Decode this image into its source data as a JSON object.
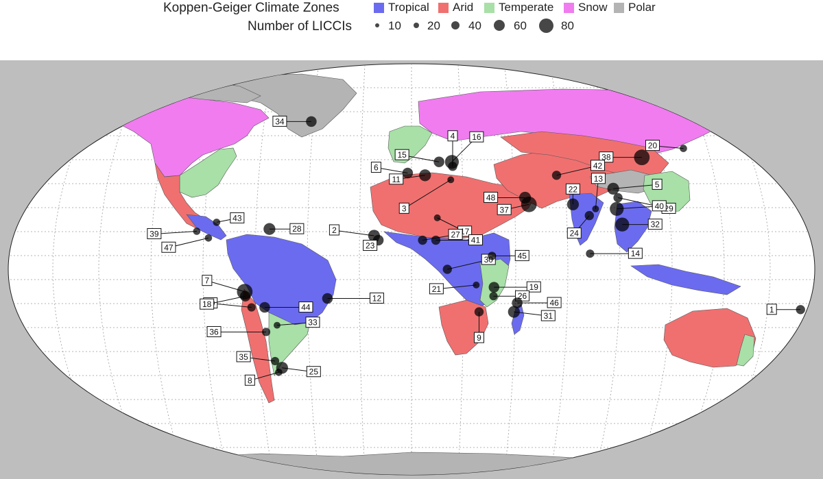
{
  "legend": {
    "climate_title": "Koppen-Geiger Climate Zones",
    "zones": [
      {
        "label": "Tropical",
        "color": "#6b6bf0"
      },
      {
        "label": "Arid",
        "color": "#f07070"
      },
      {
        "label": "Temperate",
        "color": "#a8e0a8"
      },
      {
        "label": "Snow",
        "color": "#f07cf0"
      },
      {
        "label": "Polar",
        "color": "#b4b4b4"
      }
    ],
    "size_title": "Number of LICCIs",
    "sizes": [
      {
        "label": "10",
        "value": 10
      },
      {
        "label": "20",
        "value": 20
      },
      {
        "label": "40",
        "value": 40
      },
      {
        "label": "60",
        "value": 60
      },
      {
        "label": "80",
        "value": 80
      }
    ]
  },
  "map": {
    "projection": "Robinson-like world map",
    "ocean_color": "#ffffff",
    "frame_color": "#bebebe",
    "graticule": "dotted",
    "sites": [
      {
        "id": "1",
        "lon": 178,
        "lat": -18,
        "licci": 20
      },
      {
        "id": "2",
        "lon": -17,
        "lat": 15,
        "licci": 40
      },
      {
        "id": "3",
        "lon": 20,
        "lat": 40,
        "licci": 8
      },
      {
        "id": "4",
        "lon": 22,
        "lat": 46,
        "licci": 20
      },
      {
        "id": "5",
        "lon": 100,
        "lat": 36,
        "licci": 40
      },
      {
        "id": "6",
        "lon": -2,
        "lat": 43,
        "licci": 30
      },
      {
        "id": "7",
        "lon": -75,
        "lat": -10,
        "licci": 80
      },
      {
        "id": "8",
        "lon": -71,
        "lat": -46,
        "licci": 10
      },
      {
        "id": "9",
        "lon": 31,
        "lat": -19,
        "licci": 20
      },
      {
        "id": "10",
        "lon": -73,
        "lat": -17,
        "licci": 15
      },
      {
        "id": "11",
        "lon": 7,
        "lat": 42,
        "licci": 40
      },
      {
        "id": "12",
        "lon": -38,
        "lat": -13,
        "licci": 30
      },
      {
        "id": "13",
        "lon": 87,
        "lat": 27,
        "licci": 8
      },
      {
        "id": "14",
        "lon": 80,
        "lat": 7,
        "licci": 15
      },
      {
        "id": "15",
        "lon": 15,
        "lat": 48,
        "licci": 30
      },
      {
        "id": "16",
        "lon": 22,
        "lat": 48,
        "licci": 60
      },
      {
        "id": "17",
        "lon": 12,
        "lat": 23,
        "licci": 8
      },
      {
        "id": "18",
        "lon": -75,
        "lat": -12,
        "licci": 30
      },
      {
        "id": "19",
        "lon": 37,
        "lat": -8,
        "licci": 30
      },
      {
        "id": "20",
        "lon": 158,
        "lat": 54,
        "licci": 10
      },
      {
        "id": "21",
        "lon": 29,
        "lat": -7,
        "licci": 8
      },
      {
        "id": "22",
        "lon": 77,
        "lat": 29,
        "licci": 40
      },
      {
        "id": "23",
        "lon": -15,
        "lat": 13,
        "licci": 30
      },
      {
        "id": "24",
        "lon": 83,
        "lat": 24,
        "licci": 20
      },
      {
        "id": "25",
        "lon": -68,
        "lat": -44,
        "licci": 40
      },
      {
        "id": "26",
        "lon": 37,
        "lat": -12,
        "licci": 15
      },
      {
        "id": "27",
        "lon": 5,
        "lat": 13,
        "licci": 20
      },
      {
        "id": "28",
        "lon": -65,
        "lat": 18,
        "licci": 40
      },
      {
        "id": "29",
        "lon": 100,
        "lat": 32,
        "licci": 20
      },
      {
        "id": "30",
        "lon": 16,
        "lat": 0,
        "licci": 20
      },
      {
        "id": "31",
        "lon": 47,
        "lat": -19,
        "licci": 40
      },
      {
        "id": "32",
        "lon": 97,
        "lat": 20,
        "licci": 60
      },
      {
        "id": "33",
        "lon": -63,
        "lat": -25,
        "licci": 8
      },
      {
        "id": "34",
        "lon": -70,
        "lat": 66,
        "licci": 30
      },
      {
        "id": "35",
        "lon": -70,
        "lat": -41,
        "licci": 15
      },
      {
        "id": "36",
        "lon": -69,
        "lat": -28,
        "licci": 15
      },
      {
        "id": "37",
        "lon": 56,
        "lat": 29,
        "licci": 80
      },
      {
        "id": "38",
        "lon": 128,
        "lat": 50,
        "licci": 80
      },
      {
        "id": "39",
        "lon": -98,
        "lat": 17,
        "licci": 10
      },
      {
        "id": "40",
        "lon": 97,
        "lat": 27,
        "licci": 60
      },
      {
        "id": "41",
        "lon": 11,
        "lat": 13,
        "licci": 20
      },
      {
        "id": "42",
        "lon": 75,
        "lat": 42,
        "licci": 20
      },
      {
        "id": "43",
        "lon": -90,
        "lat": 21,
        "licci": 10
      },
      {
        "id": "44",
        "lon": -67,
        "lat": -17,
        "licci": 30
      },
      {
        "id": "45",
        "lon": 36,
        "lat": 6,
        "licci": 15
      },
      {
        "id": "46",
        "lon": 48,
        "lat": -15,
        "licci": 30
      },
      {
        "id": "47",
        "lon": -92,
        "lat": 14,
        "licci": 10
      },
      {
        "id": "48",
        "lon": 55,
        "lat": 32,
        "licci": 40
      }
    ]
  }
}
